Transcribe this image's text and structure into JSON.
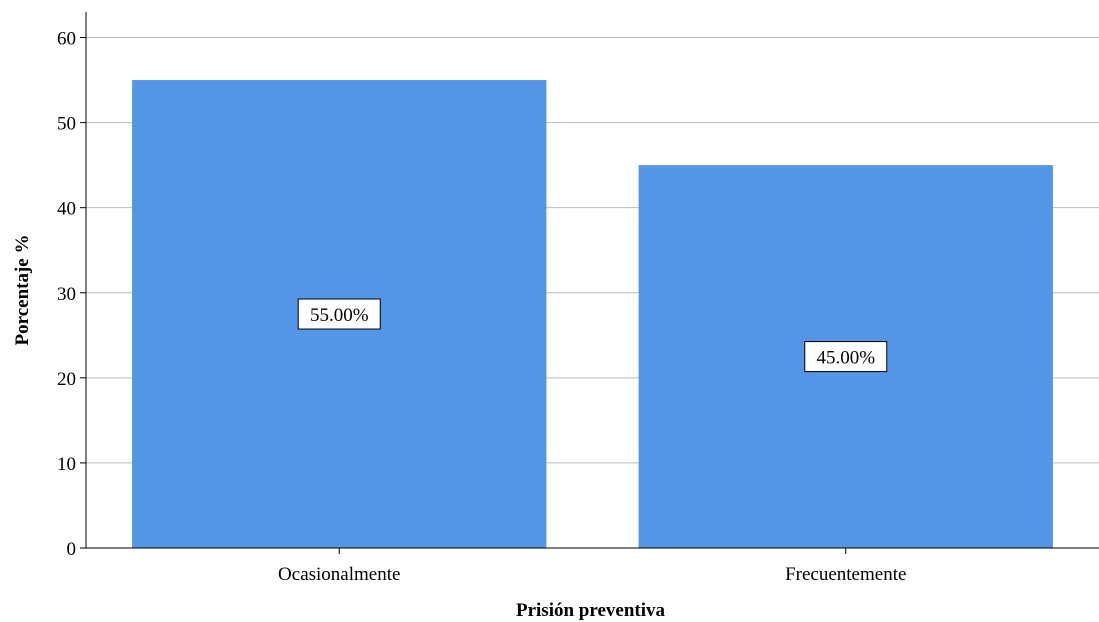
{
  "chart_data": {
    "type": "bar",
    "title": "",
    "xlabel": "Prisión preventiva",
    "ylabel": "Porcentaje %",
    "categories": [
      "Ocasionalmente",
      "Frecuentemente"
    ],
    "values": [
      55,
      45
    ],
    "data_labels": [
      "55.00%",
      "45.00%"
    ],
    "ylim": [
      0,
      63
    ],
    "yticks": [
      0,
      10,
      20,
      30,
      40,
      50,
      60
    ],
    "grid": true,
    "legend": "none",
    "bar_color": "#5595e5",
    "grid_color": "#bcbcbc"
  }
}
